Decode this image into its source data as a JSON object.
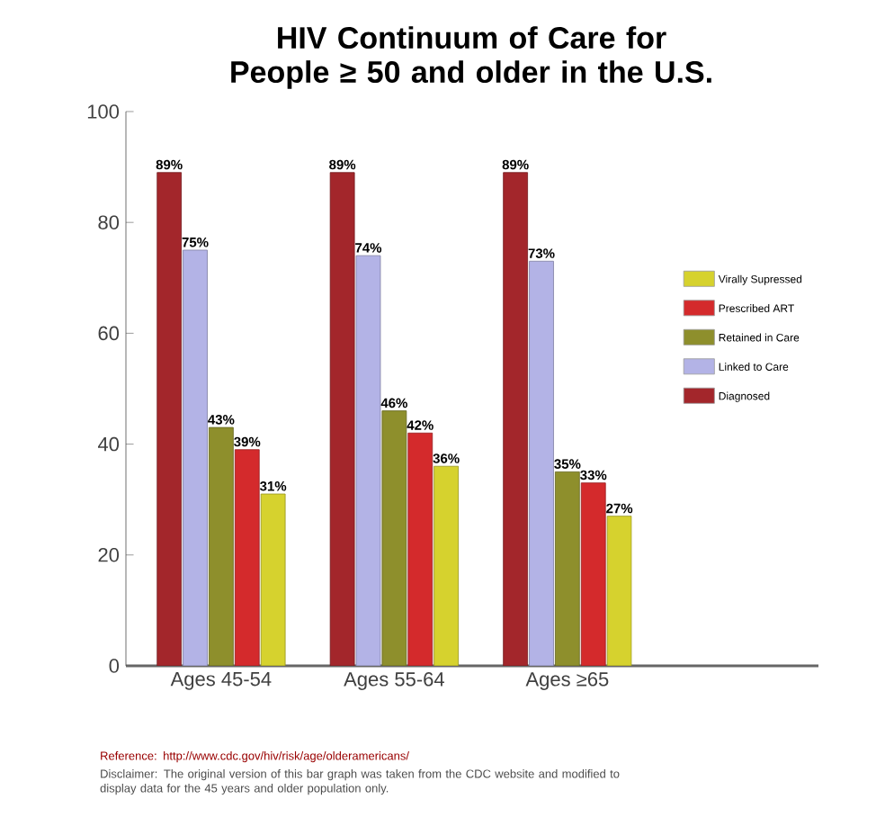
{
  "chart_data": {
    "type": "bar",
    "title": "HIV Continuum of Care for People ≥ 50 and older in the U.S.",
    "categories": [
      "Ages 45-54",
      "Ages 55-64",
      "Ages ≥65"
    ],
    "series": [
      {
        "name": "Diagnosed",
        "color": "#a3262b",
        "values": [
          89,
          89,
          89
        ],
        "value_labels": [
          "89%",
          "89%",
          "89%"
        ]
      },
      {
        "name": "Linked to Care",
        "color": "#b3b3e6",
        "values": [
          75,
          74,
          73
        ],
        "value_labels": [
          "75%",
          "74%",
          "73%"
        ]
      },
      {
        "name": "Retained in Care",
        "color": "#8e8f2c",
        "values": [
          43,
          46,
          35
        ],
        "value_labels": [
          "43%",
          "46%",
          "35%"
        ]
      },
      {
        "name": "Prescribed ART",
        "color": "#d42a2c",
        "values": [
          39,
          42,
          33
        ],
        "value_labels": [
          "39%",
          "42%",
          "33%"
        ]
      },
      {
        "name": "Virally Supressed",
        "color": "#d6d22e",
        "values": [
          31,
          36,
          27
        ],
        "value_labels": [
          "31%",
          "36%",
          "27%"
        ]
      }
    ],
    "ylim": [
      0,
      100
    ],
    "yticks": [
      0,
      20,
      40,
      60,
      80,
      100
    ],
    "grid": false,
    "legend": "right",
    "annotations": [
      "Reference: http://www.cdc.gov/hiv/risk/age/olderamericans/",
      "Disclaimer: The original version of this bar graph was taken from the CDC website and modified to display data for the 45 years and older population only."
    ]
  }
}
